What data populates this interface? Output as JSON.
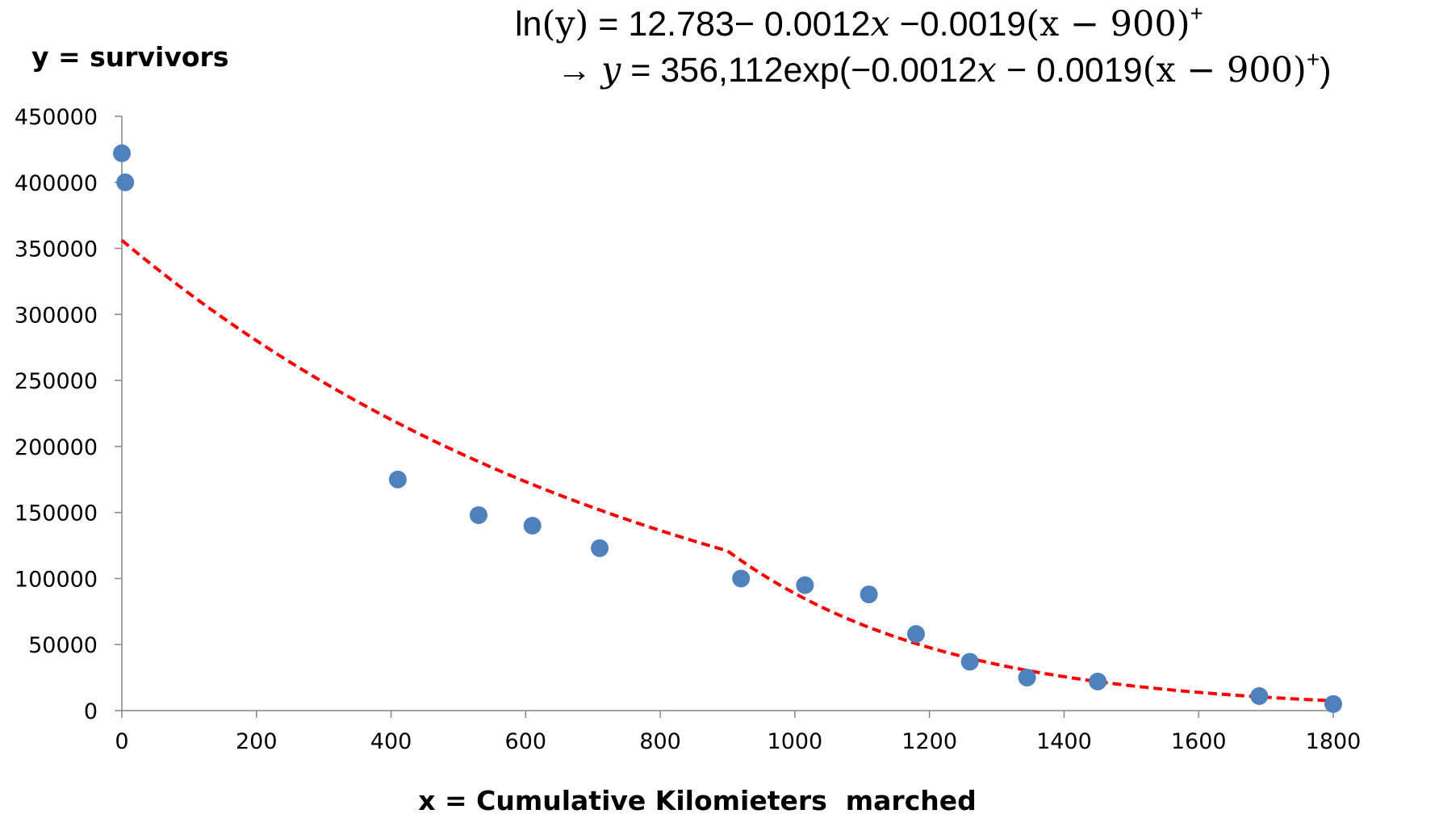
{
  "chart_data": {
    "type": "scatter",
    "title": "",
    "xlabel": "x = Cumulative Kilomieters  marched",
    "ylabel": "y = survivors",
    "xlim": [
      0,
      1800
    ],
    "ylim": [
      0,
      450000
    ],
    "x_ticks": [
      0,
      200,
      400,
      600,
      800,
      1000,
      1200,
      1400,
      1600,
      1800
    ],
    "y_ticks": [
      0,
      50000,
      100000,
      150000,
      200000,
      250000,
      300000,
      350000,
      400000,
      450000
    ],
    "grid": false,
    "legend": "none",
    "series": [
      {
        "type": "scatter",
        "color": "#4F81BD",
        "points": [
          {
            "x": 0,
            "y": 422000
          },
          {
            "x": 5,
            "y": 400000
          },
          {
            "x": 410,
            "y": 175000
          },
          {
            "x": 530,
            "y": 148000
          },
          {
            "x": 610,
            "y": 140000
          },
          {
            "x": 710,
            "y": 123000
          },
          {
            "x": 920,
            "y": 100000
          },
          {
            "x": 1015,
            "y": 95000
          },
          {
            "x": 1110,
            "y": 88000
          },
          {
            "x": 1180,
            "y": 58000
          },
          {
            "x": 1260,
            "y": 37000
          },
          {
            "x": 1345,
            "y": 25000
          },
          {
            "x": 1450,
            "y": 22000
          },
          {
            "x": 1690,
            "y": 11000
          },
          {
            "x": 1800,
            "y": 5000
          }
        ]
      },
      {
        "type": "line",
        "style": "dashed",
        "color": "#FF0000",
        "model": {
          "a": 356112,
          "b1": -0.0012,
          "b2": -0.0019,
          "knot": 900
        }
      }
    ],
    "annotations": {
      "line1": {
        "ln": "ln",
        "y_paren": "(y)",
        "eq_const": " = 12.783− 0.0012",
        "x1": "x",
        "coef2": " −0.0019",
        "paren_expr": "(x − 900)",
        "sup": "+"
      },
      "line2": {
        "arrow": "→ ",
        "y": "y",
        "eq_a": " = 356,112exp(−0.0012",
        "x1": "x",
        "minus_coef": " −  0.0019",
        "paren_expr": "(x − 900)",
        "sup": "+",
        "close": ")"
      }
    }
  }
}
